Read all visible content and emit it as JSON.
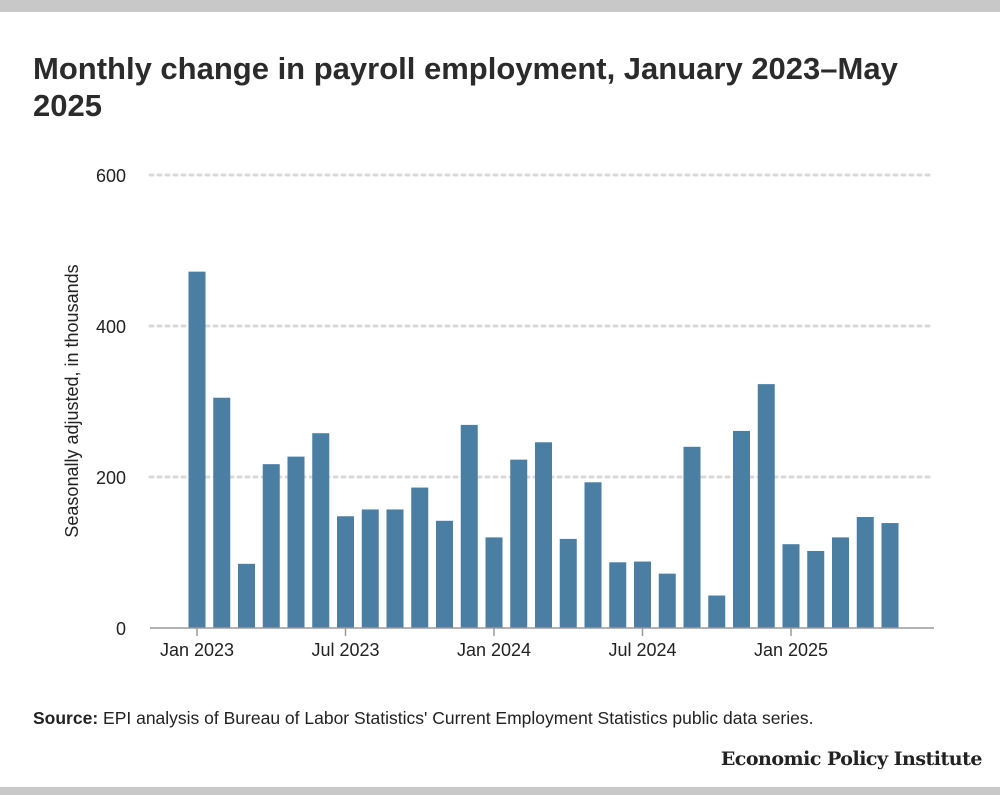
{
  "colors": {
    "bar": "#4a7ea3",
    "grid": "#d9d9d9",
    "axis": "#9a9a9a",
    "text": "#222222"
  },
  "chart_data": {
    "type": "bar",
    "title": "Monthly change in payroll employment, January 2023–May 2025",
    "xlabel": "",
    "ylabel": "Seasonally adjusted, in thousands",
    "ylim": [
      0,
      600
    ],
    "yticks": [
      0,
      200,
      400,
      600
    ],
    "grid": true,
    "x_tick_labels": [
      {
        "index": 0,
        "label": "Jan 2023"
      },
      {
        "index": 6,
        "label": "Jul 2023"
      },
      {
        "index": 12,
        "label": "Jan 2024"
      },
      {
        "index": 18,
        "label": "Jul 2024"
      },
      {
        "index": 24,
        "label": "Jan 2025"
      }
    ],
    "categories": [
      "Jan 2023",
      "Feb 2023",
      "Mar 2023",
      "Apr 2023",
      "May 2023",
      "Jun 2023",
      "Jul 2023",
      "Aug 2023",
      "Sep 2023",
      "Oct 2023",
      "Nov 2023",
      "Dec 2023",
      "Jan 2024",
      "Feb 2024",
      "Mar 2024",
      "Apr 2024",
      "May 2024",
      "Jun 2024",
      "Jul 2024",
      "Aug 2024",
      "Sep 2024",
      "Oct 2024",
      "Nov 2024",
      "Dec 2024",
      "Jan 2025",
      "Feb 2025",
      "Mar 2025",
      "Apr 2025",
      "May 2025"
    ],
    "values": [
      472,
      305,
      85,
      217,
      227,
      258,
      148,
      157,
      157,
      186,
      142,
      269,
      120,
      223,
      246,
      118,
      193,
      87,
      88,
      72,
      240,
      43,
      261,
      323,
      111,
      102,
      120,
      147,
      139
    ]
  },
  "source": {
    "label": "Source:",
    "text": " EPI analysis of Bureau of Labor Statistics' Current Employment Statistics public data series."
  },
  "brand": "Economic Policy Institute"
}
